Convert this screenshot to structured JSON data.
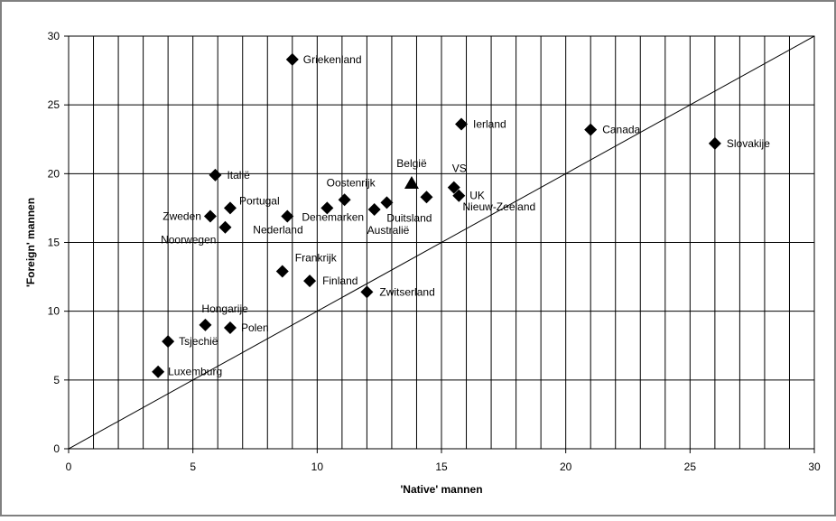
{
  "chart_data": {
    "type": "scatter",
    "title": "",
    "xlabel": "'Native' mannen",
    "ylabel": "'Foreign'  mannen",
    "xlim": [
      0,
      30
    ],
    "ylim": [
      0,
      30
    ],
    "xticks": [
      0,
      5,
      10,
      15,
      20,
      25,
      30
    ],
    "yticks": [
      0,
      5,
      10,
      15,
      20,
      25,
      30
    ],
    "x_minor_gridline_step": 1,
    "y_major_gridline_step": 5,
    "grid": "on",
    "reference_line": {
      "type": "diagonal",
      "from": [
        0,
        0
      ],
      "to": [
        30,
        30
      ]
    },
    "colors": {
      "marker": "#000000",
      "grid": "#000000",
      "frame": "#808080",
      "background": "#ffffff"
    },
    "points": [
      {
        "label": "Griekenland",
        "x": 9.0,
        "y": 28.3,
        "marker": "diamond"
      },
      {
        "label": "Ierland",
        "x": 15.8,
        "y": 23.6,
        "marker": "diamond"
      },
      {
        "label": "Canada",
        "x": 21.0,
        "y": 23.2,
        "marker": "diamond"
      },
      {
        "label": "Slovakije",
        "x": 26.0,
        "y": 22.2,
        "marker": "diamond"
      },
      {
        "label": "Italië",
        "x": 5.9,
        "y": 19.9,
        "marker": "diamond"
      },
      {
        "label": "België",
        "x": 13.8,
        "y": 19.3,
        "marker": "triangle"
      },
      {
        "label": "VS",
        "x": 15.5,
        "y": 19.0,
        "marker": "diamond"
      },
      {
        "label": "UK",
        "x": 15.7,
        "y": 18.4,
        "marker": "diamond"
      },
      {
        "label": "Oostenrijk",
        "x": 11.1,
        "y": 18.1,
        "marker": "diamond"
      },
      {
        "label": "Nieuw-Zeeland",
        "x": 14.4,
        "y": 18.3,
        "marker": "diamond"
      },
      {
        "label": "Portugal",
        "x": 6.5,
        "y": 17.5,
        "marker": "diamond"
      },
      {
        "label": "Denemarken",
        "x": 10.4,
        "y": 17.5,
        "marker": "diamond"
      },
      {
        "label": "Duitsland",
        "x": 12.8,
        "y": 17.9,
        "marker": "diamond"
      },
      {
        "label": "Australië",
        "x": 12.3,
        "y": 17.4,
        "marker": "diamond"
      },
      {
        "label": "Zweden",
        "x": 5.7,
        "y": 16.9,
        "marker": "diamond"
      },
      {
        "label": "Nederland",
        "x": 8.8,
        "y": 16.9,
        "marker": "diamond"
      },
      {
        "label": "Noorwegen",
        "x": 6.3,
        "y": 16.1,
        "marker": "diamond"
      },
      {
        "label": "Frankrijk",
        "x": 8.6,
        "y": 12.9,
        "marker": "diamond"
      },
      {
        "label": "Finland",
        "x": 9.7,
        "y": 12.2,
        "marker": "diamond"
      },
      {
        "label": "Zwitserland",
        "x": 12.0,
        "y": 11.4,
        "marker": "diamond"
      },
      {
        "label": "Hongarije",
        "x": 5.5,
        "y": 9.0,
        "marker": "diamond"
      },
      {
        "label": "Polen",
        "x": 6.5,
        "y": 8.8,
        "marker": "diamond"
      },
      {
        "label": "Tsjechië",
        "x": 4.0,
        "y": 7.8,
        "marker": "diamond"
      },
      {
        "label": "Luxemburg",
        "x": 3.6,
        "y": 5.6,
        "marker": "diamond"
      }
    ]
  }
}
